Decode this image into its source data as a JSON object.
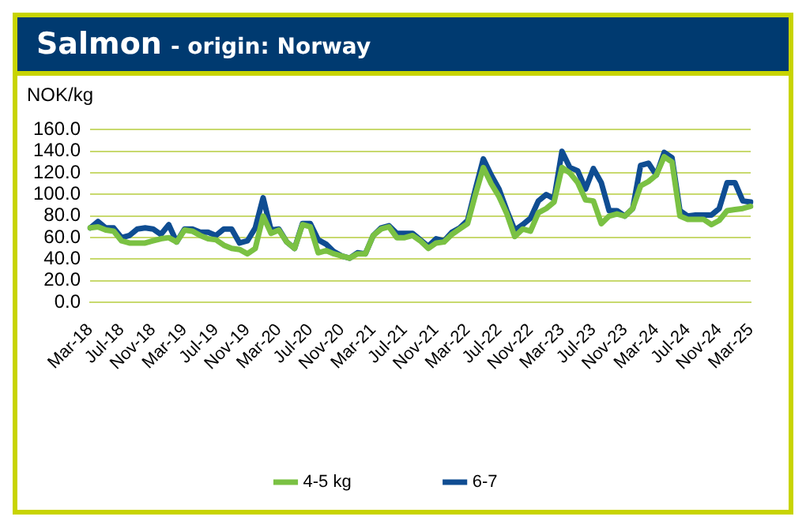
{
  "chart_data": {
    "type": "line",
    "title": "Salmon",
    "subtitle": "- origin: Norway",
    "ylabel": "NOK/kg",
    "categories": [
      "Mar-18",
      null,
      null,
      null,
      "Jul-18",
      null,
      null,
      null,
      "Nov-18",
      null,
      null,
      null,
      "Mar-19",
      null,
      null,
      null,
      "Jul-19",
      null,
      null,
      null,
      "Nov-19",
      null,
      null,
      null,
      "Mar-20",
      null,
      null,
      null,
      "Jul-20",
      null,
      null,
      null,
      "Nov-20",
      null,
      null,
      null,
      "Mar-21",
      null,
      null,
      null,
      "Jul-21",
      null,
      null,
      null,
      "Nov-21",
      null,
      null,
      null,
      "Mar-22",
      null,
      null,
      null,
      "Jul-22",
      null,
      null,
      null,
      "Nov-22",
      null,
      null,
      null,
      "Mar-23",
      null,
      null,
      null,
      "Jul-23",
      null,
      null,
      null,
      "Nov-23",
      null,
      null,
      null,
      "Mar-24",
      null,
      null,
      null,
      "Jul-24",
      null,
      null,
      null,
      "Nov-24",
      null,
      null,
      null,
      "Mar-25"
    ],
    "series": [
      {
        "name": "4-5 kg",
        "color": "#7ac143",
        "values": [
          69,
          70,
          67,
          66,
          57,
          55,
          55,
          55,
          57,
          59,
          60,
          56,
          67,
          66,
          62,
          59,
          58,
          53,
          50,
          49,
          45,
          50,
          80,
          64,
          67,
          56,
          50,
          72,
          70,
          46,
          48,
          45,
          43,
          41,
          45,
          45,
          62,
          68,
          70,
          60,
          60,
          62,
          57,
          50,
          55,
          56,
          63,
          68,
          73,
          100,
          125,
          110,
          98,
          82,
          61,
          68,
          66,
          83,
          87,
          93,
          125,
          120,
          111,
          95,
          94,
          73,
          80,
          82,
          80,
          87,
          108,
          112,
          118,
          135,
          130,
          80,
          77,
          77,
          77,
          72,
          76,
          85,
          86,
          87,
          89
        ]
      },
      {
        "name": "6-7",
        "color": "#0f4d92",
        "values": [
          69,
          75,
          69,
          69,
          60,
          62,
          68,
          69,
          68,
          63,
          72,
          56,
          68,
          68,
          65,
          65,
          62,
          68,
          68,
          55,
          57,
          69,
          97,
          67,
          68,
          56,
          50,
          73,
          73,
          58,
          54,
          47,
          43,
          41,
          46,
          45,
          62,
          69,
          71,
          64,
          64,
          64,
          58,
          52,
          59,
          57,
          65,
          69,
          76,
          105,
          133,
          118,
          105,
          85,
          67,
          72,
          78,
          94,
          100,
          96,
          140,
          125,
          122,
          105,
          124,
          111,
          85,
          85,
          80,
          87,
          127,
          129,
          118,
          139,
          134,
          85,
          80,
          81,
          81,
          81,
          87,
          111,
          111,
          94,
          93
        ]
      }
    ],
    "ylim": [
      0,
      160
    ],
    "yticks": [
      {
        "value": 0,
        "label": "0.0"
      },
      {
        "value": 20,
        "label": "20.0"
      },
      {
        "value": 40,
        "label": "40.0"
      },
      {
        "value": 60,
        "label": "60.0"
      },
      {
        "value": 80,
        "label": "80.0"
      },
      {
        "value": 100,
        "label": "100.0"
      },
      {
        "value": 120,
        "label": "120.0"
      },
      {
        "value": 140,
        "label": "140.0"
      },
      {
        "value": 160,
        "label": "160.0"
      }
    ],
    "grid": "y",
    "legend": "bottom",
    "marker": "none",
    "line_style": "solid"
  }
}
